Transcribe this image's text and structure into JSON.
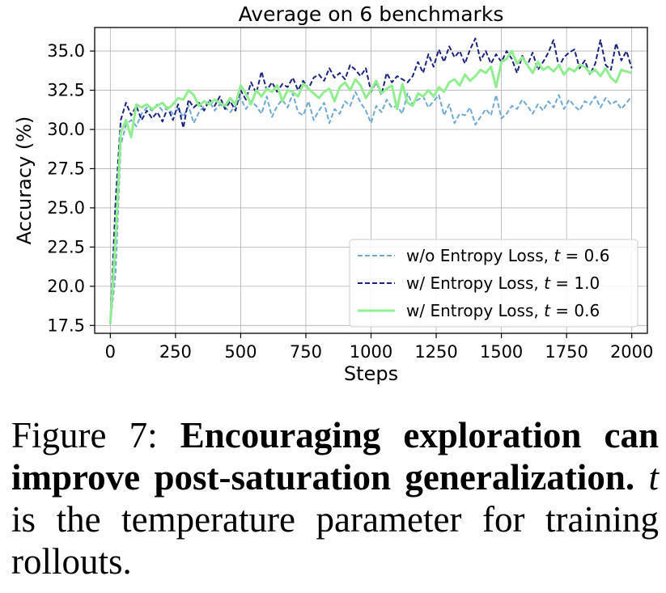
{
  "chart_data": {
    "type": "line",
    "title": "Average on 6 benchmarks",
    "xlabel": "Steps",
    "ylabel": "Accuracy (%)",
    "xlim": [
      -60,
      2060
    ],
    "ylim": [
      17.0,
      36.5
    ],
    "xticks": [
      0,
      250,
      500,
      750,
      1000,
      1250,
      1500,
      1750,
      2000
    ],
    "xtick_labels": [
      "0",
      "250",
      "500",
      "750",
      "1000",
      "1250",
      "1500",
      "1750",
      "2000"
    ],
    "yticks": [
      17.5,
      20.0,
      22.5,
      25.0,
      27.5,
      30.0,
      32.5,
      35.0
    ],
    "ytick_labels": [
      "17.5",
      "20.0",
      "22.5",
      "25.0",
      "27.5",
      "30.0",
      "32.5",
      "35.0"
    ],
    "grid": true,
    "legend_position": "lower-right",
    "series": [
      {
        "name": "w/o Entropy Loss, t = 0.6",
        "legend_prefix": "w/o Entropy Loss, ",
        "legend_var": "t",
        "legend_suffix": " = 0.6",
        "color": "#6fa8d0",
        "style": "dashed",
        "x": [
          0,
          20,
          40,
          60,
          80,
          100,
          120,
          140,
          160,
          180,
          200,
          220,
          240,
          260,
          280,
          300,
          320,
          340,
          360,
          380,
          400,
          420,
          440,
          460,
          480,
          500,
          520,
          540,
          560,
          580,
          600,
          620,
          640,
          660,
          680,
          700,
          720,
          740,
          760,
          780,
          800,
          820,
          840,
          860,
          880,
          900,
          920,
          940,
          960,
          980,
          1000,
          1020,
          1040,
          1060,
          1080,
          1100,
          1120,
          1140,
          1160,
          1180,
          1200,
          1220,
          1240,
          1260,
          1280,
          1300,
          1320,
          1340,
          1360,
          1380,
          1400,
          1420,
          1440,
          1460,
          1480,
          1500,
          1520,
          1540,
          1560,
          1580,
          1600,
          1620,
          1640,
          1660,
          1680,
          1700,
          1720,
          1740,
          1760,
          1780,
          1800,
          1820,
          1840,
          1860,
          1880,
          1900,
          1920,
          1940,
          1960,
          1980,
          2000
        ],
        "y": [
          17.6,
          20.8,
          29.0,
          30.3,
          30.6,
          30.2,
          31.0,
          31.4,
          31.2,
          31.6,
          31.2,
          31.4,
          31.0,
          31.3,
          30.8,
          31.5,
          30.4,
          31.1,
          31.5,
          31.8,
          31.2,
          31.6,
          31.4,
          31.1,
          31.5,
          32.0,
          31.3,
          31.8,
          31.5,
          31.0,
          32.1,
          30.8,
          31.5,
          31.9,
          31.4,
          32.3,
          31.1,
          30.9,
          31.8,
          30.6,
          31.2,
          31.7,
          30.4,
          31.3,
          31.0,
          31.8,
          31.5,
          32.4,
          31.7,
          31.2,
          30.4,
          31.5,
          31.1,
          31.9,
          31.4,
          31.5,
          31.0,
          32.3,
          31.6,
          31.9,
          32.1,
          31.4,
          31.8,
          32.2,
          30.9,
          31.6,
          30.4,
          31.0,
          30.9,
          31.4,
          30.3,
          30.8,
          31.3,
          30.9,
          32.2,
          30.7,
          31.0,
          31.5,
          31.3,
          31.9,
          31.5,
          31.0,
          31.6,
          31.2,
          31.8,
          31.4,
          32.2,
          31.3,
          31.9,
          31.5,
          31.2,
          31.8,
          31.6,
          32.1,
          31.4,
          32.0,
          31.6,
          31.8,
          31.3,
          31.7,
          32.1
        ]
      },
      {
        "name": "w/ Entropy Loss, t = 1.0",
        "legend_prefix": "w/ Entropy Loss, ",
        "legend_var": "t",
        "legend_suffix": " = 1.0",
        "color": "#1a237e",
        "style": "dashed",
        "x": [
          0,
          20,
          40,
          60,
          80,
          100,
          120,
          140,
          160,
          180,
          200,
          220,
          240,
          260,
          280,
          300,
          320,
          340,
          360,
          380,
          400,
          420,
          440,
          460,
          480,
          500,
          520,
          540,
          560,
          580,
          600,
          620,
          640,
          660,
          680,
          700,
          720,
          740,
          760,
          780,
          800,
          820,
          840,
          860,
          880,
          900,
          920,
          940,
          960,
          980,
          1000,
          1020,
          1040,
          1060,
          1080,
          1100,
          1120,
          1140,
          1160,
          1180,
          1200,
          1220,
          1240,
          1260,
          1280,
          1300,
          1320,
          1340,
          1360,
          1380,
          1400,
          1420,
          1440,
          1460,
          1480,
          1500,
          1520,
          1540,
          1560,
          1580,
          1600,
          1620,
          1640,
          1660,
          1680,
          1700,
          1720,
          1740,
          1760,
          1780,
          1800,
          1820,
          1840,
          1860,
          1880,
          1900,
          1920,
          1940,
          1960,
          1980,
          2000
        ],
        "y": [
          17.6,
          25.4,
          30.6,
          31.7,
          30.9,
          31.5,
          30.6,
          31.2,
          30.7,
          31.1,
          30.5,
          31.4,
          30.6,
          31.6,
          30.1,
          31.9,
          31.4,
          31.7,
          31.2,
          31.9,
          31.5,
          32.1,
          31.3,
          31.8,
          31.2,
          32.5,
          31.9,
          33.0,
          32.3,
          33.7,
          32.5,
          33.0,
          32.4,
          32.9,
          32.7,
          33.3,
          32.5,
          33.1,
          32.6,
          33.3,
          33.5,
          33.1,
          33.9,
          33.3,
          33.6,
          33.2,
          34.1,
          33.8,
          33.4,
          33.9,
          32.4,
          33.0,
          32.2,
          33.6,
          33.0,
          33.4,
          33.2,
          33.0,
          33.4,
          34.3,
          33.6,
          34.8,
          34.0,
          35.1,
          34.3,
          35.3,
          34.6,
          35.0,
          34.2,
          35.1,
          35.8,
          34.4,
          35.0,
          34.2,
          34.8,
          34.3,
          35.0,
          34.5,
          33.6,
          34.7,
          34.1,
          34.9,
          33.8,
          34.3,
          34.9,
          35.7,
          34.0,
          34.6,
          34.9,
          35.1,
          33.9,
          34.4,
          33.5,
          34.2,
          35.7,
          34.1,
          33.8,
          35.5,
          34.4,
          35.0,
          33.9
        ]
      },
      {
        "name": "w/ Entropy Loss, t = 0.6",
        "legend_prefix": "w/ Entropy Loss, ",
        "legend_var": "t",
        "legend_suffix": " = 0.6",
        "color": "#90ee90",
        "style": "solid",
        "x": [
          0,
          20,
          40,
          60,
          80,
          100,
          120,
          140,
          160,
          180,
          200,
          220,
          240,
          260,
          280,
          300,
          320,
          340,
          360,
          380,
          400,
          420,
          440,
          460,
          480,
          500,
          520,
          540,
          560,
          580,
          600,
          620,
          640,
          660,
          680,
          700,
          720,
          740,
          760,
          780,
          800,
          820,
          840,
          860,
          880,
          900,
          920,
          940,
          960,
          980,
          1000,
          1020,
          1040,
          1060,
          1080,
          1100,
          1120,
          1140,
          1160,
          1180,
          1200,
          1220,
          1240,
          1260,
          1280,
          1300,
          1320,
          1340,
          1360,
          1380,
          1400,
          1420,
          1440,
          1460,
          1480,
          1500,
          1520,
          1540,
          1560,
          1580,
          1600,
          1620,
          1640,
          1660,
          1680,
          1700,
          1720,
          1740,
          1760,
          1780,
          1800,
          1820,
          1840,
          1860,
          1880,
          1900,
          1920,
          1940,
          1960,
          1980,
          2000
        ],
        "y": [
          17.6,
          23.0,
          29.8,
          30.6,
          29.5,
          31.6,
          31.4,
          31.6,
          31.3,
          31.5,
          31.7,
          31.3,
          31.6,
          32.0,
          31.9,
          32.5,
          32.2,
          31.5,
          31.8,
          31.6,
          31.9,
          31.7,
          31.5,
          32.0,
          31.6,
          32.8,
          32.3,
          31.6,
          32.5,
          32.1,
          32.6,
          32.4,
          32.8,
          31.8,
          32.5,
          32.4,
          32.1,
          32.9,
          32.6,
          32.3,
          32.0,
          32.4,
          32.6,
          31.8,
          32.7,
          33.0,
          32.5,
          33.2,
          32.8,
          32.0,
          32.5,
          33.1,
          32.3,
          32.6,
          32.8,
          31.3,
          32.9,
          31.7,
          31.5,
          32.3,
          32.1,
          32.5,
          32.1,
          32.7,
          32.4,
          33.0,
          33.2,
          32.8,
          33.5,
          33.1,
          33.4,
          33.8,
          33.6,
          34.0,
          32.7,
          34.3,
          34.5,
          35.0,
          34.2,
          34.6,
          34.1,
          33.6,
          34.3,
          33.8,
          34.0,
          33.7,
          34.1,
          33.5,
          33.9,
          33.7,
          34.1,
          34.0,
          33.6,
          33.8,
          33.4,
          33.9,
          33.3,
          33.0,
          33.8,
          33.7,
          33.6
        ]
      }
    ]
  },
  "caption": {
    "label": "Figure 7:",
    "bold": "Encouraging exploration can improve post-saturation generalization.",
    "var": "t",
    "rest": " is the temperature parameter for training rollouts."
  }
}
